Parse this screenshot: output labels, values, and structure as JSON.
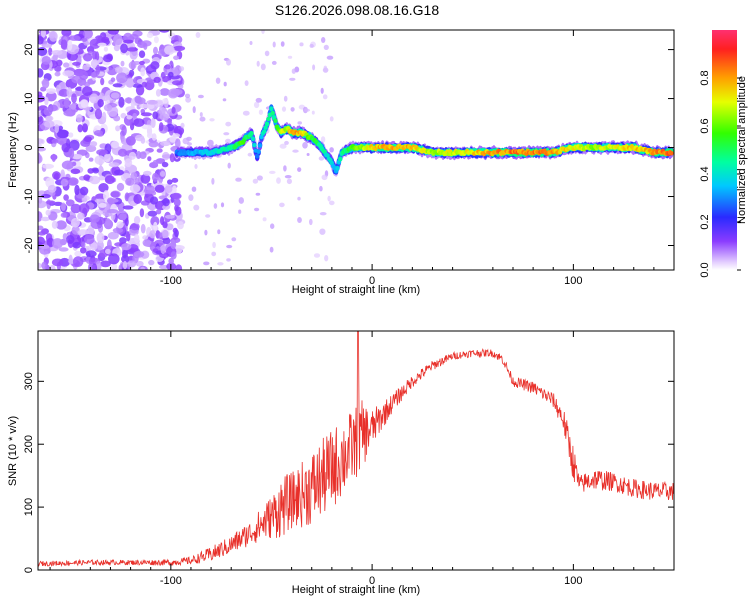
{
  "title": "S126.2026.098.08.16.G18",
  "chart_data": [
    {
      "type": "heatmap",
      "name": "spectrogram",
      "xlabel": "Height of straight line (km)",
      "ylabel": "Frequency (Hz)",
      "xlim": [
        -166,
        150
      ],
      "ylim": [
        -25,
        24
      ],
      "xticks": [
        -100,
        0,
        100
      ],
      "xtick_labels": [
        "-100",
        "0",
        "100"
      ],
      "yticks": [
        -20,
        -10,
        0,
        10,
        20
      ],
      "ytick_labels": [
        "-20",
        "-10",
        "0",
        "10",
        "20"
      ],
      "colorbar": {
        "label": "Normalized spectral amplitude",
        "ticks": [
          0.0,
          0.2,
          0.4,
          0.6,
          0.8
        ],
        "tick_labels": [
          "0.0",
          "0.2",
          "0.4",
          "0.6",
          "0.8"
        ],
        "range": [
          0,
          1
        ],
        "colormap": "rainbow (violet to red)"
      },
      "ridge": {
        "description": "dominant frequency track vs height",
        "x": [
          -97,
          -90,
          -80,
          -70,
          -65,
          -60,
          -57,
          -55,
          -52,
          -50,
          -47,
          -45,
          -42,
          -40,
          -35,
          -30,
          -25,
          -20,
          -18,
          -15,
          -10,
          -5,
          0,
          10,
          20,
          30,
          40,
          50,
          60,
          70,
          80,
          90,
          100,
          110,
          120,
          130,
          140,
          149
        ],
        "y": [
          -1,
          -1,
          -1,
          0,
          1,
          3,
          -2,
          2,
          5,
          8,
          4,
          3,
          4,
          3,
          3,
          2,
          0,
          -3,
          -5,
          -1,
          0,
          0,
          0,
          0,
          0,
          -1,
          -1,
          -1,
          -1,
          -1,
          -1,
          -1,
          0,
          0,
          0,
          0,
          -1,
          -1
        ],
        "amplitude": [
          0.3,
          0.35,
          0.4,
          0.5,
          0.6,
          0.5,
          0.3,
          0.4,
          0.5,
          0.45,
          0.6,
          0.7,
          0.75,
          0.85,
          0.8,
          0.6,
          0.5,
          0.4,
          0.35,
          0.5,
          0.6,
          0.7,
          0.8,
          0.85,
          0.8,
          0.7,
          0.75,
          0.8,
          0.85,
          0.9,
          0.9,
          0.85,
          0.75,
          0.7,
          0.75,
          0.8,
          0.85,
          0.9
        ]
      },
      "noise_region": {
        "x_range": [
          -166,
          -95
        ],
        "y_range": [
          -25,
          24
        ],
        "amplitude": "0.0-0.15"
      }
    },
    {
      "type": "line",
      "name": "snr",
      "xlabel": "Height of straight line (km)",
      "ylabel": "SNR (10 * v/v)",
      "xlim": [
        -166,
        150
      ],
      "ylim": [
        0,
        380
      ],
      "xticks": [
        -100,
        0,
        100
      ],
      "xtick_labels": [
        "-100",
        "0",
        "100"
      ],
      "yticks": [
        0,
        100,
        200,
        300
      ],
      "ytick_labels": [
        "0",
        "100",
        "200",
        "300"
      ],
      "color": "#e8302a",
      "envelope": {
        "x": [
          -166,
          -140,
          -120,
          -100,
          -90,
          -80,
          -70,
          -60,
          -50,
          -45,
          -40,
          -30,
          -20,
          -10,
          -5,
          0,
          10,
          20,
          30,
          40,
          50,
          60,
          65,
          70,
          80,
          90,
          95,
          100,
          103,
          110,
          120,
          130,
          140,
          150
        ],
        "y": [
          10,
          12,
          12,
          12,
          15,
          25,
          40,
          60,
          85,
          100,
          110,
          130,
          160,
          195,
          215,
          225,
          265,
          300,
          325,
          340,
          345,
          345,
          335,
          300,
          290,
          270,
          240,
          170,
          135,
          145,
          140,
          130,
          125,
          125
        ],
        "noise": [
          4,
          4,
          4,
          5,
          6,
          12,
          15,
          20,
          35,
          50,
          45,
          60,
          65,
          60,
          55,
          30,
          15,
          10,
          8,
          6,
          6,
          6,
          8,
          8,
          10,
          12,
          20,
          30,
          15,
          18,
          15,
          15,
          15,
          15
        ]
      },
      "spikes": [
        {
          "x": -7,
          "y": 380
        }
      ]
    }
  ],
  "colors": {
    "line": "#e8302a",
    "frame": "#000000",
    "background": "#ffffff"
  }
}
